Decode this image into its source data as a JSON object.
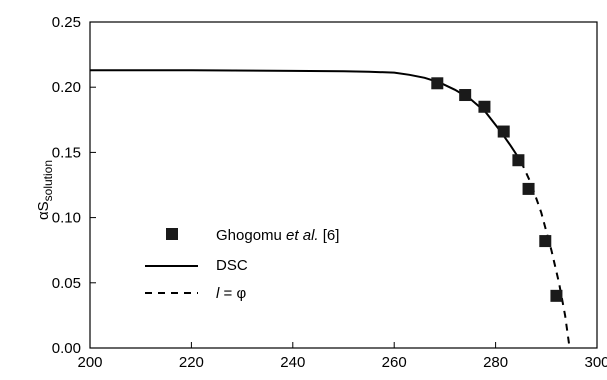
{
  "chart_data": {
    "type": "scatter",
    "xlabel": "",
    "ylabel_main": "αS",
    "ylabel_sub": "solution",
    "xlim": [
      200,
      300
    ],
    "ylim": [
      0,
      0.25
    ],
    "xticks": [
      "200",
      "220",
      "240",
      "260",
      "280",
      "300"
    ],
    "yticks": [
      "0.00",
      "0.05",
      "0.10",
      "0.15",
      "0.20",
      "0.25"
    ],
    "grid": false,
    "legend_position": "center-left",
    "series": [
      {
        "name_parts": [
          "Ghogomu ",
          "et al.",
          " [6]"
        ],
        "style": "square-markers",
        "x": [
          268.5,
          274.0,
          277.8,
          281.6,
          284.5,
          286.5,
          289.8,
          292.0
        ],
        "y": [
          0.203,
          0.194,
          0.185,
          0.166,
          0.144,
          0.122,
          0.082,
          0.04
        ]
      },
      {
        "name": "DSC",
        "style": "solid-line",
        "x": [
          200,
          220,
          240,
          250,
          255,
          260,
          263,
          266,
          269,
          272,
          275,
          278,
          281,
          283,
          285
        ],
        "y": [
          0.213,
          0.213,
          0.2125,
          0.2122,
          0.2118,
          0.2112,
          0.2095,
          0.2072,
          0.2035,
          0.198,
          0.191,
          0.181,
          0.166,
          0.155,
          0.143
        ]
      },
      {
        "name_parts": [
          "l",
          " = φ"
        ],
        "style": "dashed-line",
        "x": [
          285,
          287,
          289,
          291,
          292.5,
          293.7,
          294.6
        ],
        "y": [
          0.143,
          0.126,
          0.104,
          0.075,
          0.05,
          0.025,
          0.0
        ]
      }
    ]
  }
}
